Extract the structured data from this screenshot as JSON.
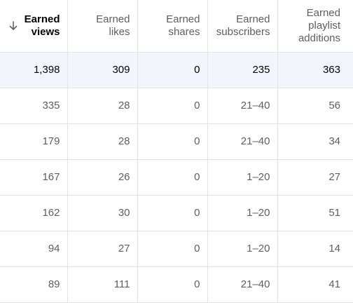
{
  "table": {
    "sort": {
      "column": 0,
      "direction": "descending",
      "icon": "arrow-down-icon"
    },
    "columns": [
      {
        "label_line1": "Earned",
        "label_line2": "views"
      },
      {
        "label_line1": "Earned",
        "label_line2": "likes"
      },
      {
        "label_line1": "Earned",
        "label_line2": "shares"
      },
      {
        "label_line1": "Earned",
        "label_line2": "subscribers"
      },
      {
        "label_line1": "Earned",
        "label_line2": "playlist",
        "label_line3": "additions"
      }
    ],
    "rows": [
      {
        "cells": [
          "1,398",
          "309",
          "0",
          "235",
          "363"
        ]
      },
      {
        "cells": [
          "335",
          "28",
          "0",
          "21–40",
          "56"
        ]
      },
      {
        "cells": [
          "179",
          "28",
          "0",
          "21–40",
          "34"
        ]
      },
      {
        "cells": [
          "167",
          "26",
          "0",
          "1–20",
          "27"
        ]
      },
      {
        "cells": [
          "162",
          "30",
          "0",
          "1–20",
          "51"
        ]
      },
      {
        "cells": [
          "94",
          "27",
          "0",
          "1–20",
          "14"
        ]
      },
      {
        "cells": [
          "89",
          "111",
          "0",
          "21–40",
          "41"
        ]
      }
    ],
    "colors": {
      "highlight_row": "#f2f6fb",
      "border": "#e5e5e5",
      "header_text": "#606060",
      "sorted_header_text": "#030303"
    }
  }
}
